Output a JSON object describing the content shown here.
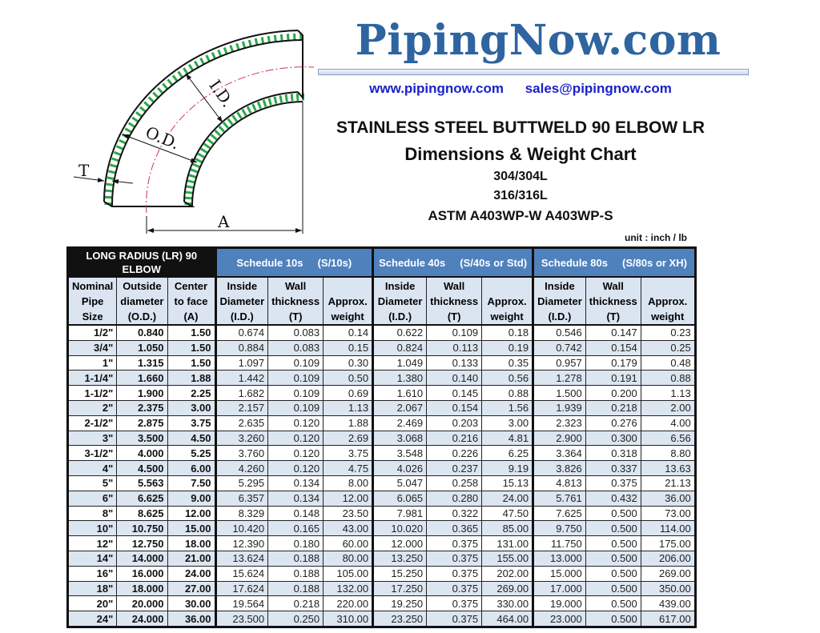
{
  "brand": {
    "logo_text": "PipingNow.com",
    "website": "www.pipingnow.com",
    "email": "sales@pipingnow.com",
    "logo_color": "#2e64a0",
    "contact_color": "#1a22c8"
  },
  "titles": {
    "line1": "STAINLESS STEEL BUTTWELD 90 ELBOW LR",
    "line2": "Dimensions & Weight Chart",
    "line3": "304/304L",
    "line4": "316/316L",
    "line5": "ASTM A403WP-W   A403WP-S",
    "unit": "unit : inch / lb"
  },
  "diagram": {
    "label_id": "I.D.",
    "label_od": "O.D.",
    "label_t": "T",
    "label_a": "A",
    "hatch_color": "#2aa84a",
    "centerline_color": "#cc3355"
  },
  "table": {
    "groups": [
      "LONG RADIUS (LR) 90 ELBOW",
      "Schedule 10s     (S/10s)",
      "Schedule 40s     (S/40s or Std)",
      "Schedule 80s     (S/80s or XH)"
    ],
    "group_colors": {
      "first": "#111111",
      "schedule": "#4f81bd",
      "header_bg": "#dbe5f1",
      "alt_row": "#dce6f1"
    },
    "headers": [
      [
        "Nominal",
        "Pipe",
        "Size"
      ],
      [
        "Outside",
        "diameter",
        "(O.D.)"
      ],
      [
        "Center",
        "to face",
        "(A)"
      ],
      [
        "Inside",
        "Diameter",
        "(I.D.)"
      ],
      [
        "Wall",
        "thickness",
        "(T)"
      ],
      [
        "",
        "Approx.",
        "weight"
      ],
      [
        "Inside",
        "Diameter",
        "(I.D.)"
      ],
      [
        "Wall",
        "thickness",
        "(T)"
      ],
      [
        "",
        "Approx.",
        "weight"
      ],
      [
        "Inside",
        "Diameter",
        "(I.D.)"
      ],
      [
        "Wall",
        "thickness",
        "(T)"
      ],
      [
        "",
        "Approx.",
        "weight"
      ]
    ],
    "rows": [
      [
        "1/2\"",
        "0.840",
        "1.50",
        "0.674",
        "0.083",
        "0.14",
        "0.622",
        "0.109",
        "0.18",
        "0.546",
        "0.147",
        "0.23"
      ],
      [
        "3/4\"",
        "1.050",
        "1.50",
        "0.884",
        "0.083",
        "0.15",
        "0.824",
        "0.113",
        "0.19",
        "0.742",
        "0.154",
        "0.25"
      ],
      [
        "1\"",
        "1.315",
        "1.50",
        "1.097",
        "0.109",
        "0.30",
        "1.049",
        "0.133",
        "0.35",
        "0.957",
        "0.179",
        "0.48"
      ],
      [
        "1-1/4\"",
        "1.660",
        "1.88",
        "1.442",
        "0.109",
        "0.50",
        "1.380",
        "0.140",
        "0.56",
        "1.278",
        "0.191",
        "0.88"
      ],
      [
        "1-1/2\"",
        "1.900",
        "2.25",
        "1.682",
        "0.109",
        "0.69",
        "1.610",
        "0.145",
        "0.88",
        "1.500",
        "0.200",
        "1.13"
      ],
      [
        "2\"",
        "2.375",
        "3.00",
        "2.157",
        "0.109",
        "1.13",
        "2.067",
        "0.154",
        "1.56",
        "1.939",
        "0.218",
        "2.00"
      ],
      [
        "2-1/2\"",
        "2.875",
        "3.75",
        "2.635",
        "0.120",
        "1.88",
        "2.469",
        "0.203",
        "3.00",
        "2.323",
        "0.276",
        "4.00"
      ],
      [
        "3\"",
        "3.500",
        "4.50",
        "3.260",
        "0.120",
        "2.69",
        "3.068",
        "0.216",
        "4.81",
        "2.900",
        "0.300",
        "6.56"
      ],
      [
        "3-1/2\"",
        "4.000",
        "5.25",
        "3.760",
        "0.120",
        "3.75",
        "3.548",
        "0.226",
        "6.25",
        "3.364",
        "0.318",
        "8.80"
      ],
      [
        "4\"",
        "4.500",
        "6.00",
        "4.260",
        "0.120",
        "4.75",
        "4.026",
        "0.237",
        "9.19",
        "3.826",
        "0.337",
        "13.63"
      ],
      [
        "5\"",
        "5.563",
        "7.50",
        "5.295",
        "0.134",
        "8.00",
        "5.047",
        "0.258",
        "15.13",
        "4.813",
        "0.375",
        "21.13"
      ],
      [
        "6\"",
        "6.625",
        "9.00",
        "6.357",
        "0.134",
        "12.00",
        "6.065",
        "0.280",
        "24.00",
        "5.761",
        "0.432",
        "36.00"
      ],
      [
        "8\"",
        "8.625",
        "12.00",
        "8.329",
        "0.148",
        "23.50",
        "7.981",
        "0.322",
        "47.50",
        "7.625",
        "0.500",
        "73.00"
      ],
      [
        "10\"",
        "10.750",
        "15.00",
        "10.420",
        "0.165",
        "43.00",
        "10.020",
        "0.365",
        "85.00",
        "9.750",
        "0.500",
        "114.00"
      ],
      [
        "12\"",
        "12.750",
        "18.00",
        "12.390",
        "0.180",
        "60.00",
        "12.000",
        "0.375",
        "131.00",
        "11.750",
        "0.500",
        "175.00"
      ],
      [
        "14\"",
        "14.000",
        "21.00",
        "13.624",
        "0.188",
        "80.00",
        "13.250",
        "0.375",
        "155.00",
        "13.000",
        "0.500",
        "206.00"
      ],
      [
        "16\"",
        "16.000",
        "24.00",
        "15.624",
        "0.188",
        "105.00",
        "15.250",
        "0.375",
        "202.00",
        "15.000",
        "0.500",
        "269.00"
      ],
      [
        "18\"",
        "18.000",
        "27.00",
        "17.624",
        "0.188",
        "132.00",
        "17.250",
        "0.375",
        "269.00",
        "17.000",
        "0.500",
        "350.00"
      ],
      [
        "20\"",
        "20.000",
        "30.00",
        "19.564",
        "0.218",
        "220.00",
        "19.250",
        "0.375",
        "330.00",
        "19.000",
        "0.500",
        "439.00"
      ],
      [
        "24\"",
        "24.000",
        "36.00",
        "23.500",
        "0.250",
        "310.00",
        "23.250",
        "0.375",
        "464.00",
        "23.000",
        "0.500",
        "617.00"
      ]
    ]
  }
}
